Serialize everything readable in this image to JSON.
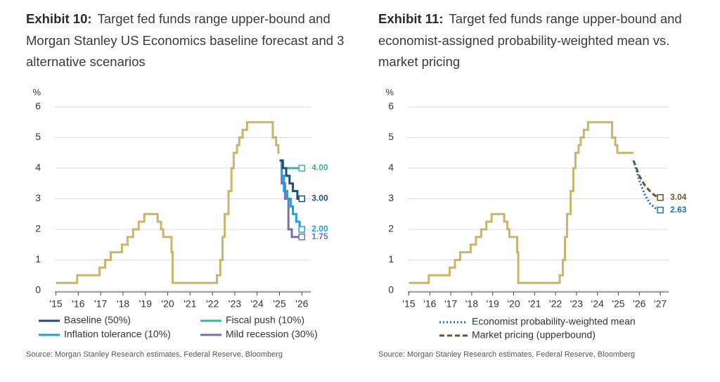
{
  "chart_data": [
    {
      "type": "line",
      "exhibit": "Exhibit 10:",
      "title": "Target fed funds range upper-bound and Morgan Stanley US Economics baseline forecast and 3 alternative scenarios",
      "ylabel": "%",
      "source": "Source: Morgan Stanley Research estimates, Federal Reserve, Bloomberg",
      "xlim": [
        2014.95,
        2026.4
      ],
      "ylim": [
        0,
        6
      ],
      "yticks": [
        0,
        1,
        2,
        3,
        4,
        5,
        6
      ],
      "xticks": [
        {
          "value": 2015,
          "label": "'15"
        },
        {
          "value": 2016,
          "label": "'16"
        },
        {
          "value": 2017,
          "label": "'17"
        },
        {
          "value": 2018,
          "label": "'18"
        },
        {
          "value": 2019,
          "label": "'19"
        },
        {
          "value": 2020,
          "label": "'20"
        },
        {
          "value": 2021,
          "label": "'21"
        },
        {
          "value": 2022,
          "label": "'22"
        },
        {
          "value": 2023,
          "label": "'23"
        },
        {
          "value": 2024,
          "label": "'24"
        },
        {
          "value": 2025,
          "label": "'25"
        },
        {
          "value": 2026,
          "label": "'26"
        }
      ],
      "grid": true,
      "legend": "bottom",
      "series": [
        {
          "color": "#c9b56b",
          "x": [
            2015.0,
            2015.95,
            2015.95,
            2016.95,
            2016.95,
            2017.2,
            2017.2,
            2017.45,
            2017.45,
            2017.95,
            2017.95,
            2018.2,
            2018.2,
            2018.45,
            2018.45,
            2018.7,
            2018.7,
            2018.95,
            2018.95,
            2019.55,
            2019.55,
            2019.7,
            2019.7,
            2019.8,
            2019.8,
            2020.17,
            2020.17,
            2020.22,
            2020.22,
            2022.2,
            2022.2,
            2022.35,
            2022.35,
            2022.45,
            2022.45,
            2022.55,
            2022.55,
            2022.72,
            2022.72,
            2022.85,
            2022.85,
            2022.95,
            2022.95,
            2023.1,
            2023.1,
            2023.2,
            2023.2,
            2023.35,
            2023.35,
            2023.55,
            2023.55,
            2024.7,
            2024.7,
            2024.85,
            2024.85,
            2024.95,
            2024.95,
            2025.0
          ],
          "values": [
            0.25,
            0.25,
            0.5,
            0.5,
            0.75,
            0.75,
            1.0,
            1.0,
            1.25,
            1.25,
            1.5,
            1.5,
            1.75,
            1.75,
            2.0,
            2.0,
            2.25,
            2.25,
            2.5,
            2.5,
            2.25,
            2.25,
            2.0,
            2.0,
            1.75,
            1.75,
            1.25,
            1.25,
            0.25,
            0.25,
            0.5,
            0.5,
            1.0,
            1.0,
            1.75,
            1.75,
            2.5,
            2.5,
            3.25,
            3.25,
            4.0,
            4.0,
            4.5,
            4.5,
            4.75,
            4.75,
            5.0,
            5.0,
            5.25,
            5.25,
            5.5,
            5.5,
            5.0,
            5.0,
            4.75,
            4.75,
            4.5,
            4.5
          ]
        },
        {
          "name": "Baseline (50%)",
          "color": "#1f4e79",
          "end_marker": "square",
          "x": [
            2025.0,
            2025.15,
            2025.15,
            2025.3,
            2025.3,
            2025.45,
            2025.45,
            2025.6,
            2025.6,
            2025.8,
            2025.8,
            2026.0
          ],
          "values": [
            4.25,
            4.25,
            4.0,
            4.0,
            3.75,
            3.75,
            3.5,
            3.5,
            3.25,
            3.25,
            3.0,
            3.0
          ],
          "value_labels": [
            null,
            null,
            null,
            null,
            null,
            null,
            null,
            null,
            null,
            null,
            null,
            "3.00"
          ]
        },
        {
          "name": "Fiscal push (10%)",
          "color": "#3db39b",
          "end_marker": "square",
          "x": [
            2025.0,
            2025.15,
            2025.15,
            2026.0
          ],
          "values": [
            4.25,
            4.25,
            4.0,
            4.0
          ],
          "value_labels": [
            null,
            null,
            null,
            "4.00"
          ]
        },
        {
          "name": "Inflation tolerance (10%)",
          "color": "#19a3d8",
          "end_marker": "square",
          "x": [
            2025.0,
            2025.1,
            2025.1,
            2025.2,
            2025.2,
            2025.35,
            2025.35,
            2025.5,
            2025.5,
            2025.6,
            2025.6,
            2025.75,
            2025.75,
            2025.9,
            2025.9,
            2026.0
          ],
          "values": [
            4.25,
            4.25,
            3.75,
            3.75,
            3.25,
            3.25,
            3.0,
            3.0,
            2.75,
            2.75,
            2.5,
            2.5,
            2.25,
            2.25,
            2.0,
            2.0
          ],
          "value_labels": [
            null,
            null,
            null,
            null,
            null,
            null,
            null,
            null,
            null,
            null,
            null,
            null,
            null,
            null,
            null,
            "2.00"
          ]
        },
        {
          "name": "Mild recession (30%)",
          "color": "#7a6db7",
          "end_marker": "square",
          "x": [
            2025.0,
            2025.1,
            2025.1,
            2025.25,
            2025.25,
            2025.4,
            2025.4,
            2025.55,
            2025.55,
            2026.0
          ],
          "values": [
            4.25,
            4.25,
            3.5,
            3.5,
            3.0,
            3.0,
            2.0,
            2.0,
            1.75,
            1.75
          ],
          "value_labels": [
            null,
            null,
            null,
            null,
            null,
            null,
            null,
            null,
            null,
            "1.75"
          ]
        }
      ]
    },
    {
      "type": "line",
      "exhibit": "Exhibit 11:",
      "title": "Target fed funds range upper-bound and economist-assigned probability-weighted mean vs. market pricing",
      "ylabel": "%",
      "source": "Source: Morgan Stanley Research estimates, Federal Reserve, Bloomberg",
      "xlim": [
        2014.95,
        2027.4
      ],
      "ylim": [
        0,
        6
      ],
      "yticks": [
        0,
        1,
        2,
        3,
        4,
        5,
        6
      ],
      "xticks": [
        {
          "value": 2015,
          "label": "'15"
        },
        {
          "value": 2016,
          "label": "'16"
        },
        {
          "value": 2017,
          "label": "'17"
        },
        {
          "value": 2018,
          "label": "'18"
        },
        {
          "value": 2019,
          "label": "'19"
        },
        {
          "value": 2020,
          "label": "'20"
        },
        {
          "value": 2021,
          "label": "'21"
        },
        {
          "value": 2022,
          "label": "'22"
        },
        {
          "value": 2023,
          "label": "'23"
        },
        {
          "value": 2024,
          "label": "'24"
        },
        {
          "value": 2025,
          "label": "'25"
        },
        {
          "value": 2026,
          "label": "'26"
        },
        {
          "value": 2027,
          "label": "'27"
        }
      ],
      "grid": true,
      "legend": "bottom",
      "series": [
        {
          "color": "#c9b56b",
          "x": [
            2015.0,
            2015.95,
            2015.95,
            2016.95,
            2016.95,
            2017.2,
            2017.2,
            2017.45,
            2017.45,
            2017.95,
            2017.95,
            2018.2,
            2018.2,
            2018.45,
            2018.45,
            2018.7,
            2018.7,
            2018.95,
            2018.95,
            2019.55,
            2019.55,
            2019.7,
            2019.7,
            2019.8,
            2019.8,
            2020.17,
            2020.17,
            2020.22,
            2020.22,
            2022.2,
            2022.2,
            2022.35,
            2022.35,
            2022.45,
            2022.45,
            2022.55,
            2022.55,
            2022.72,
            2022.72,
            2022.85,
            2022.85,
            2022.95,
            2022.95,
            2023.1,
            2023.1,
            2023.2,
            2023.2,
            2023.35,
            2023.35,
            2023.55,
            2023.55,
            2024.7,
            2024.7,
            2024.85,
            2024.85,
            2024.95,
            2024.95,
            2025.72
          ],
          "values": [
            0.25,
            0.25,
            0.5,
            0.5,
            0.75,
            0.75,
            1.0,
            1.0,
            1.25,
            1.25,
            1.5,
            1.5,
            1.75,
            1.75,
            2.0,
            2.0,
            2.25,
            2.25,
            2.5,
            2.5,
            2.25,
            2.25,
            2.0,
            2.0,
            1.75,
            1.75,
            1.25,
            1.25,
            0.25,
            0.25,
            0.5,
            0.5,
            1.0,
            1.0,
            1.75,
            1.75,
            2.5,
            2.5,
            3.25,
            3.25,
            4.0,
            4.0,
            4.5,
            4.5,
            4.75,
            4.75,
            5.0,
            5.0,
            5.25,
            5.25,
            5.5,
            5.5,
            5.0,
            5.0,
            4.75,
            4.75,
            4.5,
            4.5
          ]
        },
        {
          "name": "Economist probability-weighted mean",
          "color": "#1f6fb4",
          "dash": "dotted",
          "end_marker": "square",
          "x": [
            2025.72,
            2026.0,
            2026.25,
            2026.5,
            2026.75,
            2027.0
          ],
          "values": [
            4.25,
            3.6,
            3.15,
            2.85,
            2.7,
            2.63
          ],
          "value_labels": [
            null,
            null,
            null,
            null,
            null,
            "2.63"
          ]
        },
        {
          "name": "Market pricing (upperbound)",
          "color": "#5e5b2c",
          "dash": "dashed",
          "end_marker": "square",
          "x": [
            2025.72,
            2026.0,
            2026.25,
            2026.5,
            2026.75,
            2027.0
          ],
          "values": [
            4.25,
            3.75,
            3.45,
            3.25,
            3.1,
            3.04
          ],
          "value_labels": [
            null,
            null,
            null,
            null,
            null,
            "3.04"
          ]
        }
      ]
    }
  ]
}
